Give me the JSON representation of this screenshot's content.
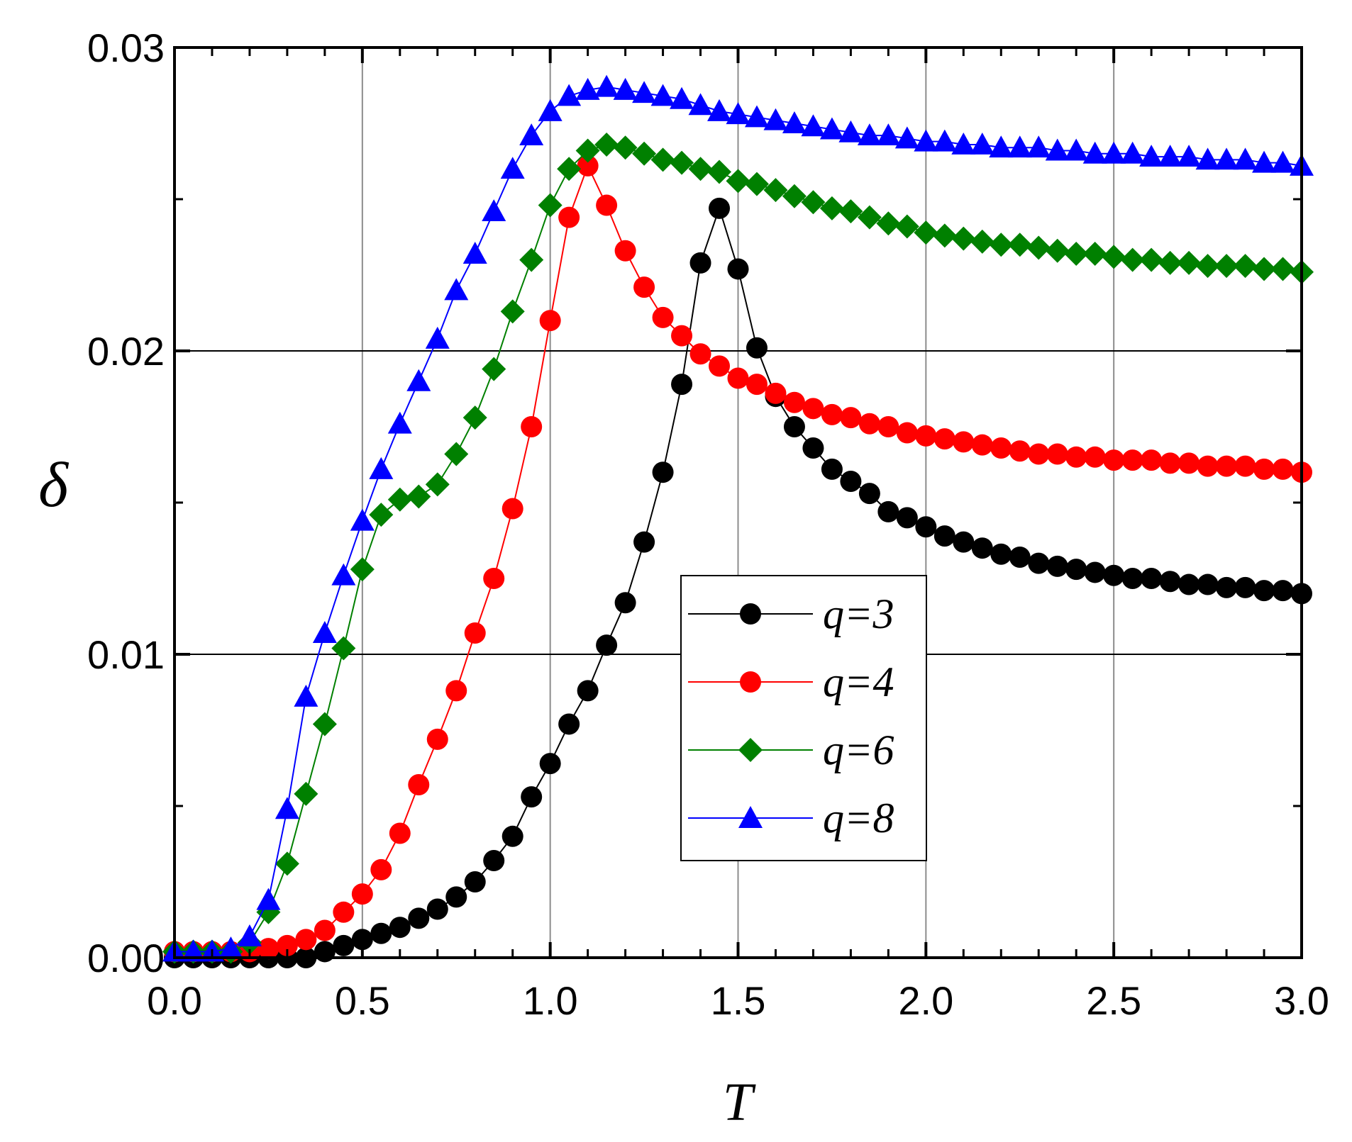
{
  "chart_data": {
    "type": "line",
    "title": "",
    "xlabel": "T",
    "ylabel": "δ",
    "xlim": [
      0.0,
      3.0
    ],
    "ylim": [
      0.0,
      0.03
    ],
    "xticks": [
      "0.0",
      "0.5",
      "1.0",
      "1.5",
      "2.0",
      "2.5",
      "3.0"
    ],
    "yticks": [
      "0.00",
      "0.01",
      "0.02",
      "0.03"
    ],
    "grid": true,
    "legend_position": "center-right",
    "x": [
      0.0,
      0.05,
      0.1,
      0.15,
      0.2,
      0.25,
      0.3,
      0.35,
      0.4,
      0.45,
      0.5,
      0.55,
      0.6,
      0.65,
      0.7,
      0.75,
      0.8,
      0.85,
      0.9,
      0.95,
      1.0,
      1.05,
      1.1,
      1.15,
      1.2,
      1.25,
      1.3,
      1.35,
      1.4,
      1.45,
      1.5,
      1.55,
      1.6,
      1.65,
      1.7,
      1.75,
      1.8,
      1.85,
      1.9,
      1.95,
      2.0,
      2.05,
      2.1,
      2.15,
      2.2,
      2.25,
      2.3,
      2.35,
      2.4,
      2.45,
      2.5,
      2.55,
      2.6,
      2.65,
      2.7,
      2.75,
      2.8,
      2.85,
      2.9,
      2.95,
      3.0
    ],
    "series": [
      {
        "name": "q=3",
        "color": "#000000",
        "marker": "circle",
        "values": [
          0.0,
          0.0,
          0.0,
          0.0,
          0.0,
          0.0,
          0.0,
          0.0,
          0.0002,
          0.0004,
          0.0006,
          0.0008,
          0.001,
          0.0013,
          0.0016,
          0.002,
          0.0025,
          0.0032,
          0.004,
          0.0053,
          0.0064,
          0.0077,
          0.0088,
          0.0103,
          0.0117,
          0.0137,
          0.016,
          0.0189,
          0.0229,
          0.0247,
          0.0227,
          0.0201,
          0.0185,
          0.0175,
          0.0168,
          0.0161,
          0.0157,
          0.0153,
          0.0147,
          0.0145,
          0.0142,
          0.0139,
          0.0137,
          0.0135,
          0.0133,
          0.0132,
          0.013,
          0.0129,
          0.0128,
          0.0127,
          0.0126,
          0.0125,
          0.0125,
          0.0124,
          0.0123,
          0.0123,
          0.0122,
          0.0122,
          0.0121,
          0.0121,
          0.012
        ]
      },
      {
        "name": "q=4",
        "color": "#ff0000",
        "marker": "circle",
        "values": [
          0.0002,
          0.0002,
          0.0002,
          0.0002,
          0.0002,
          0.0003,
          0.0004,
          0.0006,
          0.0009,
          0.0015,
          0.0021,
          0.0029,
          0.0041,
          0.0057,
          0.0072,
          0.0088,
          0.0107,
          0.0125,
          0.0148,
          0.0175,
          0.021,
          0.0244,
          0.0261,
          0.0248,
          0.0233,
          0.0221,
          0.0211,
          0.0205,
          0.0199,
          0.0195,
          0.0191,
          0.0189,
          0.0186,
          0.0183,
          0.0181,
          0.0179,
          0.0178,
          0.0176,
          0.0175,
          0.0173,
          0.0172,
          0.0171,
          0.017,
          0.0169,
          0.0168,
          0.0167,
          0.0166,
          0.0166,
          0.0165,
          0.0165,
          0.0164,
          0.0164,
          0.0164,
          0.0163,
          0.0163,
          0.0162,
          0.0162,
          0.0162,
          0.0161,
          0.0161,
          0.016
        ]
      },
      {
        "name": "q=6",
        "color": "#008000",
        "marker": "diamond",
        "values": [
          0.0002,
          0.0002,
          0.0002,
          0.0002,
          0.0005,
          0.0015,
          0.0031,
          0.0054,
          0.0077,
          0.0102,
          0.0128,
          0.0146,
          0.0151,
          0.0152,
          0.0156,
          0.0166,
          0.0178,
          0.0194,
          0.0213,
          0.023,
          0.0248,
          0.026,
          0.0266,
          0.0268,
          0.0267,
          0.0265,
          0.0263,
          0.0262,
          0.026,
          0.0259,
          0.0256,
          0.0255,
          0.0253,
          0.0251,
          0.0249,
          0.0247,
          0.0246,
          0.0244,
          0.0242,
          0.0241,
          0.0239,
          0.0238,
          0.0237,
          0.0236,
          0.0235,
          0.0235,
          0.0234,
          0.0233,
          0.0232,
          0.0232,
          0.0231,
          0.023,
          0.023,
          0.0229,
          0.0229,
          0.0228,
          0.0228,
          0.0228,
          0.0227,
          0.0227,
          0.0226
        ]
      },
      {
        "name": "q=8",
        "color": "#0000ff",
        "marker": "triangle",
        "values": [
          0.0002,
          0.0002,
          0.0002,
          0.0003,
          0.0007,
          0.0019,
          0.0049,
          0.0086,
          0.0107,
          0.0126,
          0.0144,
          0.0161,
          0.0176,
          0.019,
          0.0204,
          0.022,
          0.0232,
          0.0246,
          0.026,
          0.0271,
          0.0279,
          0.0284,
          0.0286,
          0.0287,
          0.0286,
          0.0285,
          0.0284,
          0.0283,
          0.0281,
          0.0279,
          0.0278,
          0.0277,
          0.0276,
          0.0275,
          0.0274,
          0.0273,
          0.0272,
          0.0271,
          0.0271,
          0.027,
          0.0269,
          0.0269,
          0.0268,
          0.0268,
          0.0267,
          0.0267,
          0.0267,
          0.0266,
          0.0266,
          0.0265,
          0.0265,
          0.0265,
          0.0264,
          0.0264,
          0.0264,
          0.0263,
          0.0263,
          0.0263,
          0.0262,
          0.0262,
          0.0261
        ]
      }
    ]
  }
}
